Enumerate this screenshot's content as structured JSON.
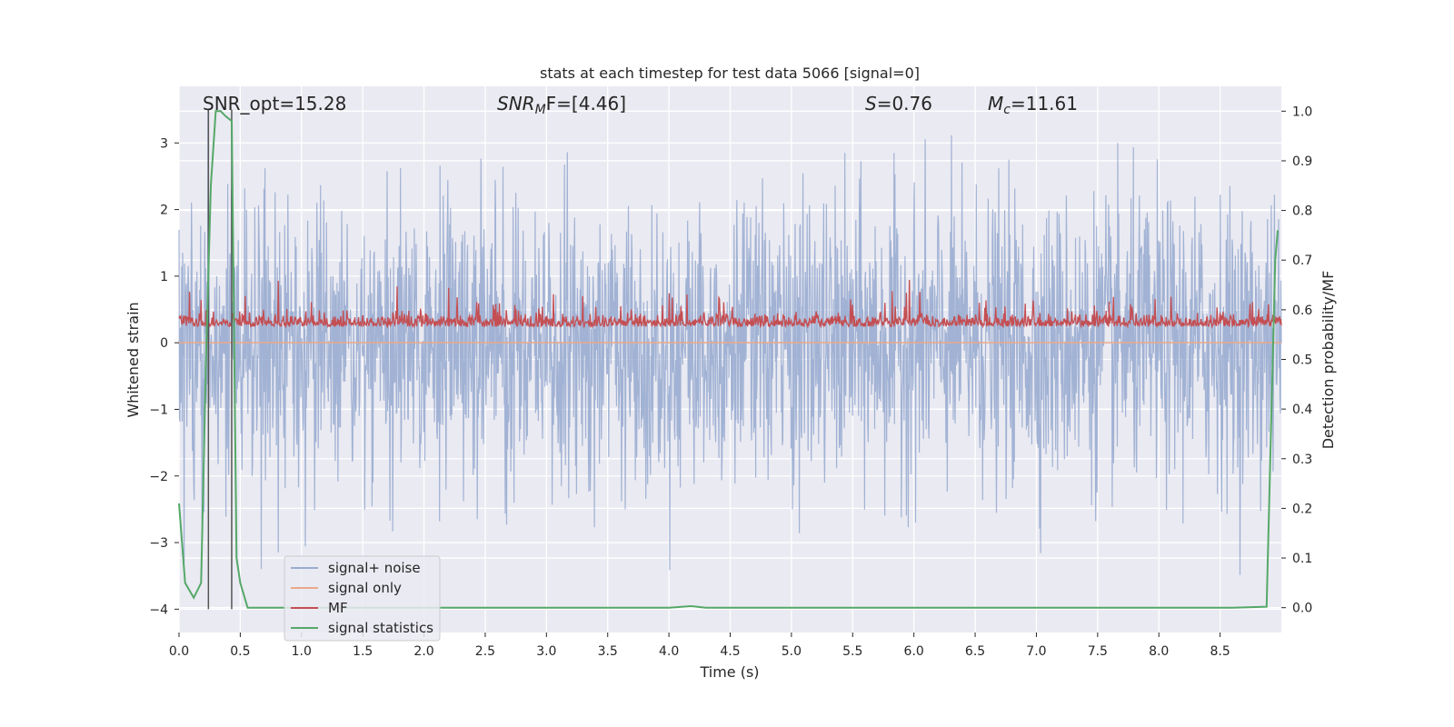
{
  "chart_data": {
    "type": "line",
    "title": "stats at each timestep for test data 5066 [signal=0]",
    "xlabel": "Time (s)",
    "ylabel_left": "Whitened strain",
    "ylabel_right": "Detection probability/MF",
    "xlim": [
      0.0,
      9.0
    ],
    "ylim_left": [
      -4.35,
      3.85
    ],
    "ylim_right": [
      -0.05,
      1.05
    ],
    "xticks": [
      "0.0",
      "0.5",
      "1.0",
      "1.5",
      "2.0",
      "2.5",
      "3.0",
      "3.5",
      "4.0",
      "4.5",
      "5.0",
      "5.5",
      "6.0",
      "6.5",
      "7.0",
      "7.5",
      "8.0",
      "8.5"
    ],
    "yticks_left": [
      "−4",
      "−3",
      "−2",
      "−1",
      "0",
      "1",
      "2",
      "3"
    ],
    "yticks_right": [
      "0.0",
      "0.1",
      "0.2",
      "0.3",
      "0.4",
      "0.5",
      "0.6",
      "0.7",
      "0.8",
      "0.9",
      "1.0"
    ],
    "grid": true,
    "legend_position": "lower-left",
    "annotations": {
      "snr_opt": "SNR_opt=15.28",
      "snr_mf_sym": "SNR",
      "snr_mf_sub": "M",
      "snr_mf_rest": "F=[4.46]",
      "s_sym": "S",
      "s_rest": "=0.76",
      "mc_sym": "M",
      "mc_sub": "c",
      "mc_rest": "=11.61"
    },
    "vertical_markers_s": [
      0.24,
      0.43
    ],
    "series": [
      {
        "name": "signal+ noise",
        "axis": "left",
        "style": "noise band, approx. std 1.0 (peaks up to ~3.5, down to ~-3.6)",
        "approx_range": [
          -3.6,
          3.5
        ]
      },
      {
        "name": "signal only",
        "axis": "left",
        "style": "flat (no signal, signal=0)",
        "values_constant": 0
      },
      {
        "name": "MF",
        "axis": "right",
        "style": "noisy band centered ~0.57 (range ~0.55 to ~0.67)",
        "approx_range": [
          0.55,
          0.67
        ]
      },
      {
        "name": "signal statistics",
        "axis": "right",
        "x": [
          0.0,
          0.05,
          0.12,
          0.18,
          0.22,
          0.26,
          0.3,
          0.34,
          0.38,
          0.43,
          0.47,
          0.5,
          0.56,
          1.0,
          2.0,
          3.0,
          4.0,
          4.18,
          4.3,
          5.0,
          6.0,
          7.0,
          8.0,
          8.6,
          8.88,
          8.92,
          8.95,
          8.97
        ],
        "y": [
          0.21,
          0.05,
          0.02,
          0.05,
          0.5,
          0.85,
          1.0,
          1.0,
          0.99,
          0.98,
          0.1,
          0.05,
          0.0,
          0.0,
          0.0,
          0.0,
          0.0,
          0.003,
          0.0,
          0.0,
          0.0,
          0.0,
          0.0,
          0.0,
          0.002,
          0.4,
          0.7,
          0.76
        ]
      }
    ]
  },
  "colors": {
    "plot_bg": "#eaeaf2",
    "grid": "#ffffff",
    "noise": "#99acd0",
    "signal_only": "#e9a98a",
    "mf": "#c44e52",
    "stats": "#55a868",
    "marker": "#555555"
  }
}
